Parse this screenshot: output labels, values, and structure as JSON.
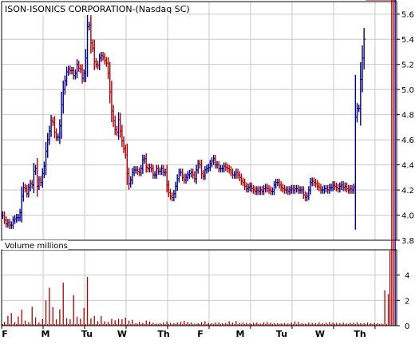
{
  "colors": {
    "background": "#ffffff",
    "panel_border": "#000000",
    "grid": "#c8c8c8",
    "up_bar": "#00008b",
    "down_bar": "#b00000",
    "volume_bar": "#b00000",
    "volume_bar_last": "#00008b",
    "text": "#000000"
  },
  "chart_data": [
    {
      "type": "ohlc",
      "title": "ISON-ISONICS CORPORATION-(Nasdaq SC)",
      "ylim": [
        3.8,
        5.7
      ],
      "y_ticks": [
        "5.6",
        "5.4",
        "5.2",
        "5.0",
        "4.8",
        "4.6",
        "4.4",
        "4.2",
        "4.0",
        "3.8"
      ],
      "grid": true,
      "x_labels": [
        "F",
        "M",
        "Tu",
        "W",
        "Th",
        "F",
        "M",
        "Tu",
        "W",
        "Th"
      ],
      "session_x": [
        1.3,
        3.3,
        5.3,
        7.3,
        9.3,
        11.3,
        13.3,
        15.3,
        17.3,
        19.3,
        21.3,
        23.3,
        25.3,
        27.3,
        29.3,
        31.3,
        33.3,
        35.3,
        37.3,
        39.3,
        41.3,
        43.3,
        45.3,
        47.3,
        49.3,
        51.3,
        53.3,
        55.3,
        57.3,
        59.3,
        61.3,
        63.3,
        65.3,
        67.3,
        69.3,
        71.3,
        73.3,
        75.3,
        77.3,
        79.3,
        81.3,
        83.3,
        85.3,
        87.3,
        89.3,
        91.3,
        93.3,
        95.3,
        97.3,
        99.3,
        101.3,
        103.3,
        105.3,
        107.3,
        109.3,
        111.3,
        113.3,
        115.3,
        117.3,
        119.3,
        121.3,
        123.3,
        125.3,
        127.3,
        129.3,
        131.3,
        133.3,
        135.3,
        137.3,
        139.3,
        141.3,
        143.3,
        145.3,
        147.3,
        149.3,
        151.3,
        153.3,
        155.3,
        157.3,
        159.3,
        161.3,
        163.3,
        165.3,
        167.3,
        169.3,
        171.3,
        173.3,
        175.3,
        177.3,
        179.3,
        181.3,
        183.3,
        185.3,
        187.3,
        189.3,
        191.3,
        193.3,
        195.3,
        197.3,
        199.3,
        201.3,
        203.3,
        205.3,
        207.3,
        209.3,
        211.3,
        213.3,
        215.3,
        217.3,
        219.3,
        221.3,
        223.3,
        225.3,
        227.3,
        229.3,
        231.3,
        233.3,
        235.3,
        237.3,
        239.3,
        241.3,
        243.3,
        245.3,
        247.3,
        249.3,
        251.3,
        253.3,
        255.3,
        257.3,
        259.3,
        261.3,
        263.3,
        265.3,
        267.3,
        269.3,
        271.3,
        273.3,
        275.3,
        277.3,
        279.3,
        281.3,
        283.3,
        285.3,
        287.3,
        289.3,
        291.3,
        293.3,
        295.3,
        297.3,
        299.3,
        301.3,
        303.3,
        305.3,
        307.3,
        309.3,
        311.3,
        313.3,
        315.3,
        317.3,
        319.3,
        321.3,
        323.3,
        325.3,
        327.3,
        329.3,
        331.3,
        333.3,
        335.3,
        337.3,
        339.3,
        341.3,
        343.3,
        345.3,
        347.3,
        349.3,
        351.3,
        353.3,
        355.3,
        357.3,
        359.3,
        361.3,
        363.3,
        365.3,
        367.3,
        369.3,
        371.3,
        373.3,
        375.3,
        377.3,
        379.3,
        381.3,
        383.3,
        385.3,
        387.3,
        389.3,
        391.3,
        393.3,
        395.3,
        397.3,
        399.3,
        401.3,
        403.3,
        405.3,
        407.3,
        409.3,
        411.3,
        413.3,
        415.3,
        417.3,
        419.3,
        421.3,
        423.3,
        425.3,
        427.3,
        429.3,
        431.3,
        433.3,
        435.3,
        437.3,
        439.3,
        441.3,
        443.3,
        445.3,
        447.3,
        449.3,
        451.3,
        453.3,
        455.3
      ],
      "session_y": [
        4.0,
        3.96,
        3.93,
        3.94,
        3.92,
        3.92,
        3.96,
        3.97,
        3.98,
        3.98,
        4.02,
        4.15,
        4.22,
        4.21,
        4.17,
        4.22,
        4.25,
        4.24,
        4.35,
        4.37,
        4.23,
        4.28,
        4.26,
        4.33,
        4.39,
        4.51,
        4.6,
        4.67,
        4.75,
        4.74,
        4.66,
        4.62,
        4.62,
        4.71,
        4.88,
        5.0,
        5.07,
        5.14,
        5.16,
        5.15,
        5.15,
        5.11,
        5.13,
        5.2,
        5.17,
        5.16,
        5.09,
        5.13,
        5.25,
        5.5,
        5.51,
        5.37,
        5.33,
        5.22,
        5.2,
        5.19,
        5.25,
        5.27,
        5.26,
        5.23,
        5.21,
        5.13,
        4.98,
        4.83,
        4.75,
        4.68,
        4.66,
        4.76,
        4.67,
        4.59,
        4.53,
        4.48,
        4.33,
        4.25,
        4.28,
        4.34,
        4.36,
        4.36,
        4.35,
        4.34,
        4.37,
        4.44,
        4.45,
        4.38,
        4.37,
        4.38,
        4.37,
        4.32,
        4.32,
        4.37,
        4.35,
        4.35,
        4.37,
        4.34,
        4.34,
        4.24,
        4.18,
        4.15,
        4.14,
        4.17,
        4.23,
        4.29,
        4.34,
        4.34,
        4.3,
        4.28,
        4.3,
        4.32,
        4.33,
        4.34,
        4.32,
        4.29,
        4.36,
        4.41,
        4.4,
        4.33,
        4.31,
        4.36,
        4.37,
        4.38,
        4.41,
        4.43,
        4.45,
        4.4,
        4.4,
        4.37,
        4.37,
        4.37,
        4.39,
        4.38,
        4.37,
        4.36,
        4.34,
        4.32,
        4.32,
        4.34,
        4.32,
        4.3,
        4.27,
        4.26,
        4.23,
        4.21,
        4.22,
        4.23,
        4.21,
        4.2,
        4.19,
        4.2,
        4.19,
        4.2,
        4.19,
        4.21,
        4.22,
        4.21,
        4.2,
        4.19,
        4.19,
        4.24,
        4.26,
        4.26,
        4.24,
        4.22,
        4.21,
        4.2,
        4.2,
        4.19,
        4.2,
        4.21,
        4.2,
        4.21,
        4.21,
        4.2,
        4.2,
        4.2,
        4.16,
        4.14,
        4.15,
        4.2,
        4.26,
        4.27,
        4.26,
        4.25,
        4.23,
        4.22,
        4.2,
        4.2,
        4.21,
        4.21,
        4.2,
        4.22,
        4.22,
        4.24,
        4.23,
        4.22,
        4.21,
        4.23,
        4.24,
        4.22,
        4.23,
        4.21,
        4.2,
        4.21,
        4.2,
        4.22,
        4.78,
        4.85,
        4.85,
        5.08,
        5.25,
        5.4
      ],
      "note": "closing prices per ~30-min session"
    },
    {
      "type": "bar",
      "title": "Volume  millions",
      "ylim": [
        0,
        6
      ],
      "y_ticks": [
        "4",
        "2",
        "0"
      ],
      "grid": true,
      "x_labels": [
        "F",
        "M",
        "Tu",
        "W",
        "Th",
        "F",
        "M",
        "Tu",
        "W",
        "Th"
      ],
      "bar_x": [
        1.3,
        3.3,
        5.3,
        7.3,
        9.3,
        11.3,
        13.3,
        15.3,
        17.3,
        19.3,
        21.3,
        23.3,
        25.3,
        27.3,
        29.3,
        31.3,
        33.3,
        35.3,
        37.3,
        39.3,
        41.3,
        43.3,
        45.3,
        47.3,
        49.3,
        51.3,
        53.3,
        55.3,
        57.3,
        59.3,
        61.3,
        63.3,
        65.3,
        67.3,
        69.3,
        71.3,
        73.3,
        75.3,
        77.3,
        79.3,
        81.3,
        83.3,
        85.3,
        87.3,
        89.3,
        91.3,
        93.3,
        95.3,
        97.3,
        99.3,
        101.3,
        103.3,
        105.3,
        107.3,
        109.3,
        111.3,
        113.3,
        115.3,
        117.3,
        119.3,
        121.3,
        123.3,
        125.3,
        127.3,
        129.3,
        131.3,
        133.3,
        135.3,
        137.3,
        139.3,
        141.3,
        143.3,
        145.3,
        147.3,
        149.3,
        151.3,
        153.3,
        155.3,
        157.3,
        159.3,
        161.3,
        163.3,
        165.3,
        167.3,
        169.3,
        171.3,
        173.3,
        175.3,
        177.3,
        179.3,
        181.3,
        183.3,
        185.3,
        187.3,
        189.3,
        191.3,
        193.3,
        195.3,
        197.3,
        199.3,
        201.3,
        203.3,
        205.3,
        207.3,
        209.3,
        211.3,
        213.3,
        215.3,
        217.3,
        219.3,
        221.3,
        223.3,
        225.3,
        227.3,
        229.3,
        231.3,
        233.3,
        235.3,
        237.3,
        239.3,
        241.3,
        243.3,
        245.3,
        247.3,
        249.3,
        251.3,
        253.3,
        255.3,
        257.3,
        259.3,
        261.3,
        263.3,
        265.3,
        267.3,
        269.3,
        271.3,
        273.3,
        275.3,
        277.3,
        279.3,
        281.3,
        283.3,
        285.3,
        287.3,
        289.3,
        291.3,
        293.3,
        295.3,
        297.3,
        299.3,
        301.3,
        303.3,
        305.3,
        307.3,
        309.3,
        311.3,
        313.3,
        315.3,
        317.3,
        319.3,
        321.3,
        323.3,
        325.3,
        327.3,
        329.3,
        331.3,
        333.3,
        335.3,
        337.3,
        339.3,
        341.3,
        343.3,
        345.3,
        347.3,
        349.3,
        351.3,
        353.3,
        355.3,
        357.3,
        359.3,
        361.3,
        363.3,
        365.3,
        367.3,
        369.3,
        371.3,
        373.3,
        375.3,
        377.3,
        379.3,
        381.3,
        383.3,
        385.3,
        387.3,
        389.3,
        391.3,
        393.3,
        395.3,
        397.3,
        399.3,
        401.3,
        403.3,
        405.3,
        407.3,
        409.3,
        411.3,
        413.3,
        415.3,
        417.3,
        419.3,
        421.3,
        423.3,
        425.3,
        427.3,
        429.3,
        431.3,
        433.3,
        435.3,
        437.3,
        439.3,
        441.3,
        443.3,
        445.3,
        447.3,
        449.3,
        451.3,
        453.3,
        455.3
      ],
      "values": [
        0.12,
        0.3,
        0.12,
        0.78,
        0.12,
        1.0,
        0.12,
        0.28,
        0.12,
        0.73,
        0.12,
        1.27,
        0.12,
        0.4,
        0.12,
        0.27,
        0.12,
        1.5,
        0.12,
        0.65,
        0.12,
        0.25,
        0.12,
        0.53,
        0.12,
        2.0,
        0.12,
        3.0,
        0.12,
        1.47,
        0.12,
        0.5,
        0.12,
        1.29,
        0.12,
        3.4,
        0.12,
        0.58,
        0.12,
        0.5,
        0.12,
        2.42,
        0.12,
        0.71,
        0.12,
        0.55,
        0.12,
        1.4,
        0.12,
        3.86,
        0.12,
        0.58,
        0.12,
        0.77,
        0.12,
        0.36,
        0.12,
        0.75,
        0.12,
        0.34,
        0.12,
        0.3,
        0.12,
        0.54,
        0.12,
        0.43,
        0.12,
        0.54,
        0.12,
        0.51,
        0.12,
        0.64,
        0.12,
        0.4,
        0.12,
        0.47,
        0.12,
        0.2,
        0.12,
        0.3,
        0.12,
        0.22,
        0.12,
        0.41,
        0.12,
        0.33,
        0.12,
        0.22,
        0.12,
        0.17,
        0.12,
        0.2,
        0.12,
        0.26,
        0.12,
        0.34,
        0.12,
        0.22,
        0.12,
        0.19,
        0.12,
        0.24,
        0.12,
        0.3,
        0.12,
        0.38,
        0.12,
        0.29,
        0.12,
        0.26,
        0.12,
        0.16,
        0.12,
        0.19,
        0.12,
        0.28,
        0.12,
        0.35,
        0.12,
        0.22,
        0.12,
        0.19,
        0.12,
        0.24,
        0.12,
        0.25,
        0.12,
        0.2,
        0.12,
        0.21,
        0.12,
        0.35,
        0.12,
        0.25,
        0.12,
        0.37,
        0.12,
        0.22,
        0.12,
        0.25,
        0.12,
        0.22,
        0.12,
        0.19,
        0.12,
        0.23,
        0.12,
        0.24,
        0.12,
        0.16,
        0.12,
        0.26,
        0.12,
        0.29,
        0.12,
        0.24,
        0.12,
        0.2,
        0.12,
        0.19,
        0.12,
        0.18,
        0.12,
        0.2,
        0.12,
        0.17,
        0.12,
        0.25,
        0.12,
        0.33,
        0.12,
        0.29,
        0.12,
        0.2,
        0.12,
        0.17,
        0.12,
        0.25,
        0.12,
        0.22,
        0.12,
        0.19,
        0.12,
        0.26,
        0.12,
        0.19,
        0.12,
        0.24,
        0.12,
        0.28,
        0.12,
        0.25,
        0.12,
        0.23,
        0.12,
        0.19,
        0.12,
        0.24,
        0.12,
        0.17,
        0.12,
        0.22,
        0.12,
        0.24,
        0.12,
        0.28,
        0.12,
        0.19,
        0.12,
        0.21,
        0.12,
        0.25,
        0.12,
        0.2,
        0.12,
        0.22,
        0.12,
        0.19,
        0.12,
        0.16,
        0.12,
        2.8,
        0.12,
        2.5,
        5.93
      ]
    }
  ]
}
